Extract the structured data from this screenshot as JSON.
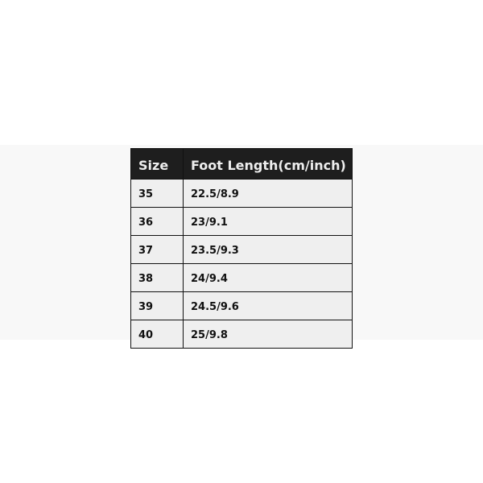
{
  "table": {
    "headers": [
      "Size",
      "Foot Length(cm/inch)"
    ],
    "rows": [
      [
        "35",
        "22.5/8.9"
      ],
      [
        "36",
        "23/9.1"
      ],
      [
        "37",
        "23.5/9.3"
      ],
      [
        "38",
        "24/9.4"
      ],
      [
        "39",
        "24.5/9.6"
      ],
      [
        "40",
        "25/9.8"
      ]
    ]
  }
}
